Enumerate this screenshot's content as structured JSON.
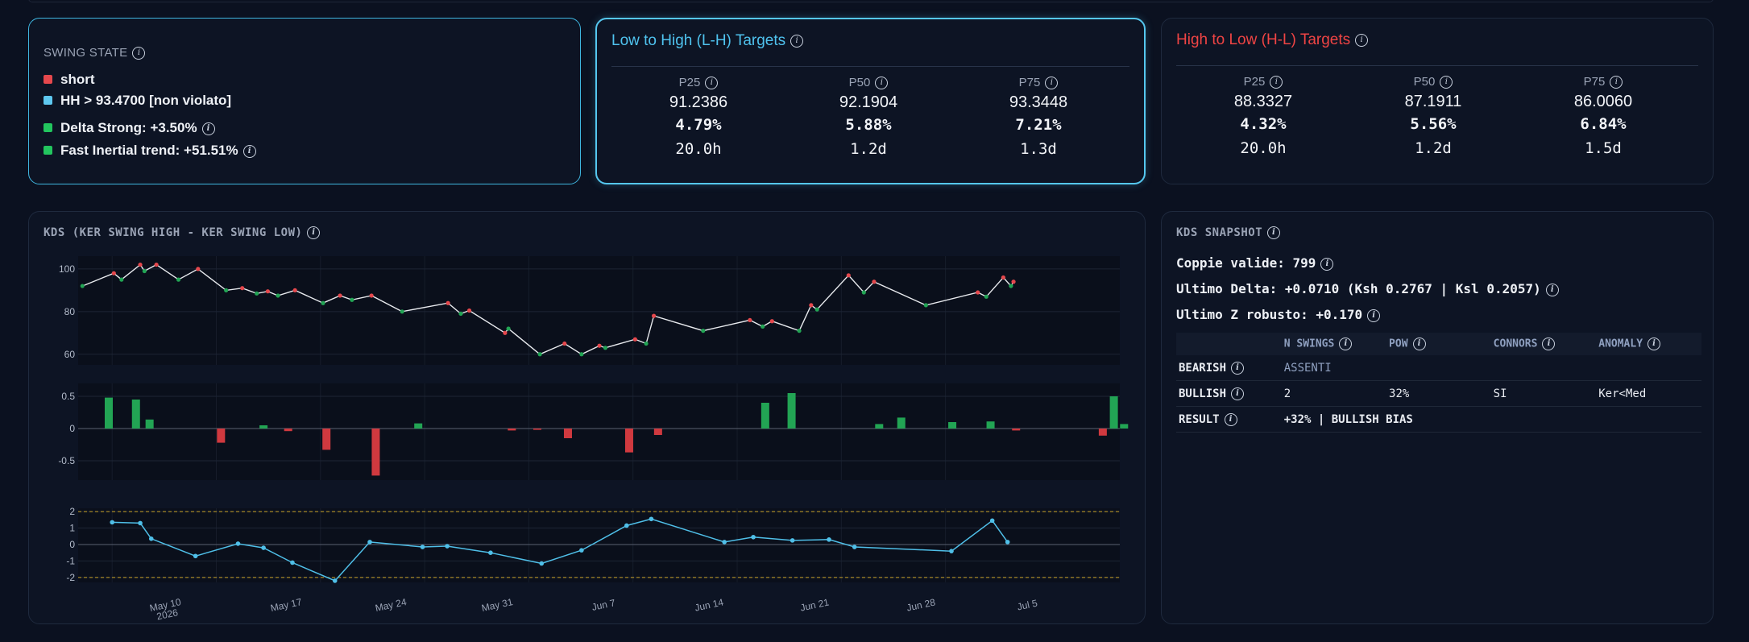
{
  "swing_state": {
    "title": "SWING STATE",
    "rows": [
      {
        "text": "short",
        "color": "#e5484d",
        "info": false
      },
      {
        "text": "HH > 93.4700 [non violato]",
        "color": "#5ec8f0",
        "info": false
      },
      {
        "text": "Delta Strong: +3.50%",
        "color": "#22c55e",
        "info": true
      },
      {
        "text": "Fast Inertial trend: +51.51%",
        "color": "#22c55e",
        "info": true
      }
    ]
  },
  "lh_targets": {
    "title": "Low to High (L-H) Targets",
    "color": "#4fc3ef",
    "cols": [
      {
        "label": "P25",
        "price": "91.2386",
        "pct": "4.79%",
        "dur": "20.0h"
      },
      {
        "label": "P50",
        "price": "92.1904",
        "pct": "5.88%",
        "dur": "1.2d"
      },
      {
        "label": "P75",
        "price": "93.3448",
        "pct": "7.21%",
        "dur": "1.3d"
      }
    ]
  },
  "hl_targets": {
    "title": "High to Low (H-L) Targets",
    "color": "#ef4444",
    "cols": [
      {
        "label": "P25",
        "price": "88.3327",
        "pct": "4.32%",
        "dur": "20.0h"
      },
      {
        "label": "P50",
        "price": "87.1911",
        "pct": "5.56%",
        "dur": "1.2d"
      },
      {
        "label": "P75",
        "price": "86.0060",
        "pct": "6.84%",
        "dur": "1.5d"
      }
    ]
  },
  "kds_chart": {
    "title": "KDS (KER SWING HIGH - KER SWING LOW)"
  },
  "kds_snapshot": {
    "title": "KDS SNAPSHOT",
    "coppie": "Coppie valide: 799",
    "delta": "Ultimo Delta: +0.0710 (Ksh 0.2767 | Ksl 0.2057)",
    "z": "Ultimo Z robusto: +0.170",
    "headers": [
      "",
      "N SWINGS",
      "POW",
      "CONNORS",
      "ANOMALY"
    ],
    "rows": [
      {
        "label": "BEARISH",
        "cells": [
          "ASSENTI",
          "",
          "",
          ""
        ]
      },
      {
        "label": "BULLISH",
        "cells": [
          "2",
          "32%",
          "SI",
          "Ker<Med"
        ]
      },
      {
        "label": "RESULT",
        "cells": [
          "+32% | BULLISH BIAS",
          "",
          "",
          ""
        ]
      }
    ]
  },
  "chart_data": [
    {
      "type": "line",
      "x_tick_labels": [
        "May 10\n2026",
        "May 17",
        "May 24",
        "May 31",
        "Jun 7",
        "Jun 14",
        "Jun 21",
        "Jun 28",
        "Jul 5"
      ],
      "y_ticks": [
        60,
        80,
        100
      ],
      "ylim": [
        55,
        106
      ],
      "series": [
        {
          "points": [
            [
              0.5,
              92
            ],
            [
              4.2,
              98
            ],
            [
              5.1,
              95
            ],
            [
              7.3,
              102
            ],
            [
              7.8,
              99
            ],
            [
              9.2,
              102
            ],
            [
              11.8,
              95
            ],
            [
              14.1,
              100
            ],
            [
              17.4,
              90
            ],
            [
              19.3,
              91
            ],
            [
              21.0,
              88.5
            ],
            [
              22.3,
              89.5
            ],
            [
              23.5,
              87.5
            ],
            [
              25.5,
              90
            ],
            [
              28.8,
              84
            ],
            [
              30.8,
              87.5
            ],
            [
              32.2,
              85.5
            ],
            [
              34.5,
              87.5
            ],
            [
              38.1,
              80
            ],
            [
              43.5,
              84
            ],
            [
              45.0,
              79
            ],
            [
              46.0,
              80.5
            ],
            [
              50.2,
              70
            ],
            [
              50.6,
              72
            ],
            [
              54.3,
              60
            ],
            [
              57.2,
              65
            ],
            [
              59.2,
              60
            ],
            [
              61.3,
              64
            ],
            [
              62.0,
              63
            ],
            [
              65.5,
              67
            ],
            [
              66.8,
              65
            ],
            [
              67.7,
              78
            ],
            [
              73.5,
              71
            ],
            [
              79.0,
              76
            ],
            [
              80.5,
              73
            ],
            [
              81.6,
              75.5
            ],
            [
              84.8,
              71
            ],
            [
              86.2,
              83
            ],
            [
              86.9,
              81
            ],
            [
              90.6,
              97
            ],
            [
              92.4,
              89
            ],
            [
              93.6,
              94
            ],
            [
              99.7,
              83
            ],
            [
              105.8,
              89
            ],
            [
              106.8,
              87
            ],
            [
              108.8,
              96
            ],
            [
              109.7,
              92
            ],
            [
              110.0,
              94
            ]
          ],
          "marker_colors": [
            "g",
            "r",
            "g",
            "r",
            "g",
            "r",
            "g",
            "r",
            "g",
            "r",
            "g",
            "r",
            "g",
            "r",
            "g",
            "r",
            "g",
            "r",
            "g",
            "r",
            "g",
            "r",
            "r",
            "g",
            "g",
            "r",
            "g",
            "r",
            "g",
            "r",
            "g",
            "r",
            "g",
            "r",
            "g",
            "r",
            "g",
            "r",
            "g",
            "r",
            "g",
            "r",
            "g",
            "r",
            "g",
            "r",
            "g",
            "r"
          ]
        }
      ]
    },
    {
      "type": "bar",
      "y_ticks": [
        0.5,
        0,
        -0.5
      ],
      "ylim": [
        -0.8,
        0.7
      ],
      "bars": [
        [
          3.6,
          0.48
        ],
        [
          6.8,
          0.45
        ],
        [
          8.4,
          0.14
        ],
        [
          16.8,
          -0.22
        ],
        [
          21.8,
          0.05
        ],
        [
          24.7,
          -0.04
        ],
        [
          29.2,
          -0.33
        ],
        [
          35.0,
          -0.73
        ],
        [
          40.0,
          0.08
        ],
        [
          51.0,
          -0.03
        ],
        [
          54.0,
          -0.02
        ],
        [
          57.6,
          -0.15
        ],
        [
          64.8,
          -0.37
        ],
        [
          68.2,
          -0.1
        ],
        [
          80.8,
          0.4
        ],
        [
          83.9,
          0.55
        ],
        [
          94.2,
          0.07
        ],
        [
          96.8,
          0.17
        ],
        [
          102.8,
          0.1
        ],
        [
          107.3,
          0.11
        ],
        [
          110.3,
          -0.03
        ],
        [
          120.5,
          -0.11
        ],
        [
          121.8,
          0.5
        ],
        [
          123.0,
          0.07
        ]
      ]
    },
    {
      "type": "line",
      "y_ticks": [
        2,
        1,
        0,
        -1,
        -2
      ],
      "ylim": [
        -2.3,
        2.2
      ],
      "reference_lines": [
        2,
        -2
      ],
      "series": [
        {
          "points": [
            [
              4,
              1.35
            ],
            [
              7.3,
              1.3
            ],
            [
              8.6,
              0.35
            ],
            [
              13.8,
              -0.7
            ],
            [
              18.8,
              0.05
            ],
            [
              21.8,
              -0.2
            ],
            [
              25.2,
              -1.1
            ],
            [
              30.2,
              -2.2
            ],
            [
              34.3,
              0.15
            ],
            [
              40.5,
              -0.15
            ],
            [
              43.4,
              -0.1
            ],
            [
              48.5,
              -0.5
            ],
            [
              54.5,
              -1.15
            ],
            [
              59.2,
              -0.35
            ],
            [
              64.5,
              1.15
            ],
            [
              67.4,
              1.55
            ],
            [
              76.0,
              0.15
            ],
            [
              79.4,
              0.45
            ],
            [
              84.0,
              0.25
            ],
            [
              88.3,
              0.3
            ],
            [
              91.3,
              -0.15
            ],
            [
              102.7,
              -0.4
            ],
            [
              107.5,
              1.45
            ],
            [
              109.3,
              0.15
            ]
          ]
        }
      ]
    }
  ]
}
